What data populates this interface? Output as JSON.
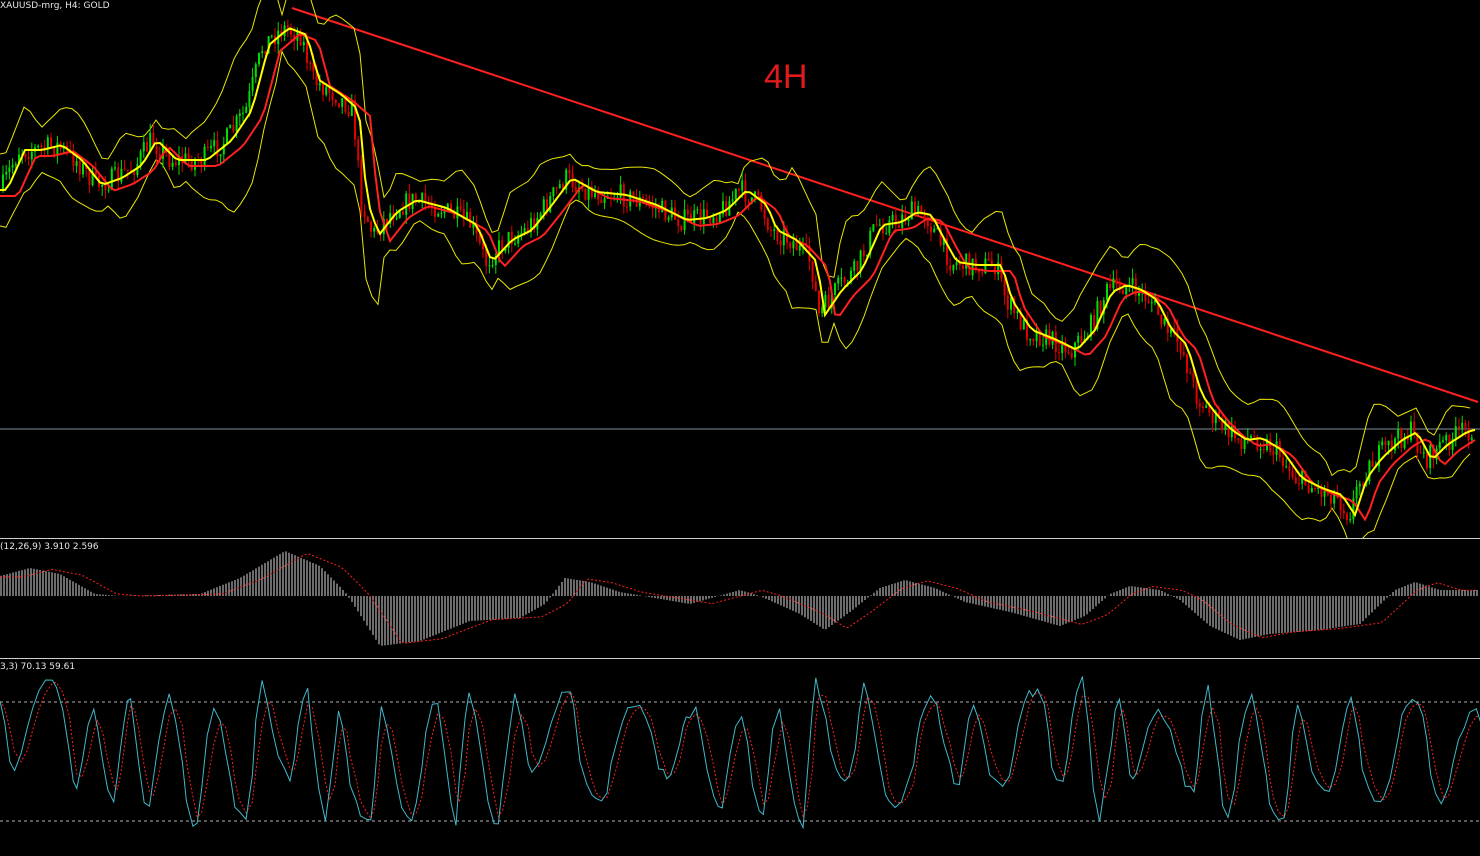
{
  "symbol_info": "XAUUSD-mrg, H4:  GOLD",
  "timeframe_annotation": "4H",
  "macd_label": "(12,26,9) 3.910 2.596",
  "stoch_label": "3,3) 70.13 59.61",
  "colors": {
    "background": "#000000",
    "bull_candle": "#00e000",
    "bear_candle": "#e00000",
    "ema_fast": "#ffff00",
    "ema_slow": "#ff2020",
    "bollinger": "#e8e800",
    "trendline": "#ff2020",
    "horizontal_line": "#7f8fa0",
    "histogram": "#d8d8d8",
    "signal": "#ff2020",
    "stoch_main": "#40b8c8",
    "stoch_signal": "#ff2020",
    "level_lines": "#b0b0b0"
  }
}
